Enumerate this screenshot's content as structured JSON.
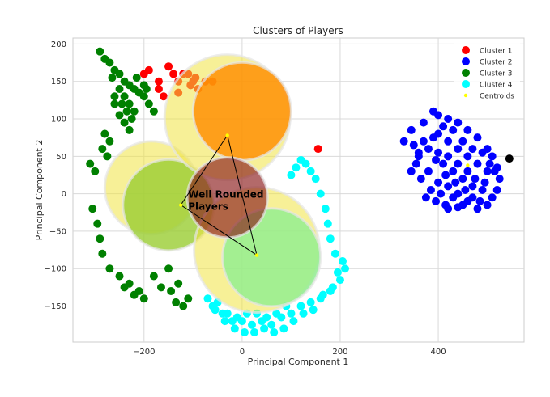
{
  "chart_data": {
    "type": "scatter",
    "title": "Clusters of Players",
    "xlabel": "Principal Component 1",
    "ylabel": "Principal Component 2",
    "xlim": [
      -345,
      575
    ],
    "ylim": [
      -198,
      208
    ],
    "x_ticks": [
      -200,
      0,
      200,
      400
    ],
    "y_ticks": [
      200,
      150,
      100,
      50,
      0,
      -50,
      -100,
      -150
    ],
    "grid": true,
    "legend_position": "top-right",
    "series": [
      {
        "name": "Cluster 1",
        "color": "#ff0000",
        "points": [
          [
            -190,
            165
          ],
          [
            -150,
            170
          ],
          [
            -120,
            160
          ],
          [
            -105,
            145
          ],
          [
            -95,
            155
          ],
          [
            -130,
            150
          ],
          [
            -170,
            150
          ],
          [
            -140,
            160
          ],
          [
            -200,
            160
          ],
          [
            -110,
            160
          ],
          [
            -90,
            140
          ],
          [
            -75,
            150
          ],
          [
            -60,
            150
          ],
          [
            -170,
            140
          ],
          [
            -100,
            150
          ],
          [
            155,
            60
          ],
          [
            -160,
            130
          ],
          [
            -130,
            135
          ]
        ]
      },
      {
        "name": "Cluster 2",
        "color": "#0000ff",
        "points": [
          [
            330,
            70
          ],
          [
            345,
            85
          ],
          [
            370,
            95
          ],
          [
            390,
            110
          ],
          [
            400,
            105
          ],
          [
            420,
            100
          ],
          [
            440,
            95
          ],
          [
            460,
            85
          ],
          [
            480,
            75
          ],
          [
            500,
            60
          ],
          [
            510,
            50
          ],
          [
            520,
            35
          ],
          [
            525,
            20
          ],
          [
            520,
            5
          ],
          [
            510,
            -5
          ],
          [
            500,
            -15
          ],
          [
            480,
            -20
          ],
          [
            460,
            -10
          ],
          [
            440,
            0
          ],
          [
            420,
            10
          ],
          [
            400,
            15
          ],
          [
            380,
            30
          ],
          [
            360,
            50
          ],
          [
            350,
            65
          ],
          [
            400,
            80
          ],
          [
            420,
            70
          ],
          [
            440,
            60
          ],
          [
            460,
            50
          ],
          [
            480,
            40
          ],
          [
            500,
            30
          ],
          [
            410,
            40
          ],
          [
            430,
            30
          ],
          [
            450,
            20
          ],
          [
            470,
            10
          ],
          [
            490,
            5
          ],
          [
            380,
            60
          ],
          [
            400,
            55
          ],
          [
            420,
            50
          ],
          [
            440,
            40
          ],
          [
            460,
            30
          ],
          [
            470,
            60
          ],
          [
            490,
            55
          ],
          [
            450,
            70
          ],
          [
            430,
            85
          ],
          [
            410,
            90
          ],
          [
            390,
            75
          ],
          [
            370,
            70
          ],
          [
            360,
            55
          ],
          [
            395,
            45
          ],
          [
            415,
            25
          ],
          [
            435,
            15
          ],
          [
            455,
            5
          ],
          [
            475,
            20
          ],
          [
            495,
            15
          ],
          [
            505,
            40
          ],
          [
            515,
            30
          ],
          [
            470,
            -5
          ],
          [
            450,
            -15
          ],
          [
            430,
            -5
          ],
          [
            405,
            0
          ],
          [
            385,
            5
          ],
          [
            365,
            20
          ],
          [
            345,
            30
          ],
          [
            355,
            40
          ],
          [
            440,
            -18
          ],
          [
            415,
            -15
          ],
          [
            395,
            -10
          ],
          [
            375,
            -5
          ],
          [
            420,
            -20
          ],
          [
            485,
            -10
          ]
        ]
      },
      {
        "name": "Cluster 3",
        "color": "#008000",
        "points": [
          [
            -290,
            190
          ],
          [
            -280,
            180
          ],
          [
            -270,
            175
          ],
          [
            -260,
            165
          ],
          [
            -250,
            160
          ],
          [
            -240,
            150
          ],
          [
            -230,
            145
          ],
          [
            -220,
            140
          ],
          [
            -210,
            135
          ],
          [
            -200,
            130
          ],
          [
            -190,
            120
          ],
          [
            -180,
            110
          ],
          [
            -250,
            140
          ],
          [
            -240,
            130
          ],
          [
            -230,
            120
          ],
          [
            -220,
            110
          ],
          [
            -260,
            120
          ],
          [
            -250,
            105
          ],
          [
            -240,
            95
          ],
          [
            -230,
            85
          ],
          [
            -280,
            80
          ],
          [
            -270,
            70
          ],
          [
            -300,
            30
          ],
          [
            -310,
            40
          ],
          [
            -305,
            -20
          ],
          [
            -295,
            -40
          ],
          [
            -290,
            -60
          ],
          [
            -285,
            -80
          ],
          [
            -270,
            -100
          ],
          [
            -250,
            -110
          ],
          [
            -230,
            -120
          ],
          [
            -210,
            -130
          ],
          [
            -180,
            -110
          ],
          [
            -150,
            -100
          ],
          [
            -130,
            -120
          ],
          [
            -110,
            -140
          ],
          [
            -120,
            -150
          ],
          [
            -200,
            145
          ],
          [
            -215,
            155
          ],
          [
            -195,
            140
          ],
          [
            -265,
            155
          ],
          [
            -285,
            60
          ],
          [
            -275,
            50
          ],
          [
            -220,
            -135
          ],
          [
            -240,
            -125
          ],
          [
            -200,
            -140
          ],
          [
            -165,
            -125
          ],
          [
            -145,
            -130
          ],
          [
            -135,
            -145
          ],
          [
            -260,
            130
          ],
          [
            -245,
            120
          ],
          [
            -235,
            110
          ],
          [
            -225,
            100
          ]
        ]
      },
      {
        "name": "Cluster 4",
        "color": "#00ffff",
        "points": [
          [
            -60,
            -150
          ],
          [
            -40,
            -160
          ],
          [
            -20,
            -170
          ],
          [
            0,
            -170
          ],
          [
            20,
            -175
          ],
          [
            40,
            -170
          ],
          [
            60,
            -175
          ],
          [
            80,
            -165
          ],
          [
            100,
            -160
          ],
          [
            120,
            -150
          ],
          [
            140,
            -145
          ],
          [
            160,
            -140
          ],
          [
            180,
            -130
          ],
          [
            200,
            -115
          ],
          [
            210,
            -100
          ],
          [
            205,
            -90
          ],
          [
            190,
            -80
          ],
          [
            180,
            -60
          ],
          [
            175,
            -40
          ],
          [
            170,
            -20
          ],
          [
            160,
            0
          ],
          [
            150,
            20
          ],
          [
            140,
            30
          ],
          [
            130,
            40
          ],
          [
            120,
            45
          ],
          [
            110,
            35
          ],
          [
            100,
            25
          ],
          [
            90,
            -150
          ],
          [
            70,
            -160
          ],
          [
            50,
            -165
          ],
          [
            30,
            -160
          ],
          [
            10,
            -160
          ],
          [
            -10,
            -165
          ],
          [
            -30,
            -160
          ],
          [
            -50,
            -145
          ],
          [
            -70,
            -140
          ],
          [
            195,
            -105
          ],
          [
            185,
            -125
          ],
          [
            165,
            -135
          ],
          [
            145,
            -155
          ],
          [
            125,
            -160
          ],
          [
            105,
            -170
          ],
          [
            85,
            -180
          ],
          [
            65,
            -185
          ],
          [
            45,
            -180
          ],
          [
            25,
            -185
          ],
          [
            5,
            -185
          ],
          [
            -15,
            -180
          ],
          [
            -35,
            -170
          ],
          [
            -55,
            -155
          ]
        ]
      },
      {
        "name": "Centroids",
        "color": "#ffff00",
        "points": [
          [
            -30,
            78
          ],
          [
            460,
            38
          ],
          [
            -125,
            -15
          ],
          [
            30,
            -82
          ]
        ]
      }
    ],
    "extra_points": [
      {
        "color": "#000000",
        "points": [
          [
            545,
            47
          ]
        ]
      }
    ],
    "overlays": {
      "circles": [
        {
          "cx": -185,
          "cy": 8,
          "r_x": 95,
          "color": "#f0e442",
          "opacity": 0.55
        },
        {
          "cx": -150,
          "cy": -15,
          "r_x": 93,
          "color": "#9acd32",
          "opacity": 0.8
        },
        {
          "cx": -30,
          "cy": 102,
          "r_x": 128,
          "color": "#f0e442",
          "opacity": 0.55
        },
        {
          "cx": 0,
          "cy": 110,
          "r_x": 100,
          "color": "#ff8c00",
          "opacity": 0.82
        },
        {
          "cx": 30,
          "cy": -75,
          "r_x": 128,
          "color": "#f0e442",
          "opacity": 0.55
        },
        {
          "cx": 60,
          "cy": -85,
          "r_x": 100,
          "color": "#90ee90",
          "opacity": 0.82
        },
        {
          "cx": -30,
          "cy": -5,
          "r_x": 82,
          "color": "#8b1a1a",
          "opacity": 0.65
        }
      ],
      "triangle": [
        [
          -30,
          78
        ],
        [
          -125,
          -15
        ],
        [
          30,
          -82
        ]
      ],
      "annotation": {
        "line1": "Well Rounded",
        "line2": "Players",
        "x": -110,
        "y": -5
      }
    }
  }
}
